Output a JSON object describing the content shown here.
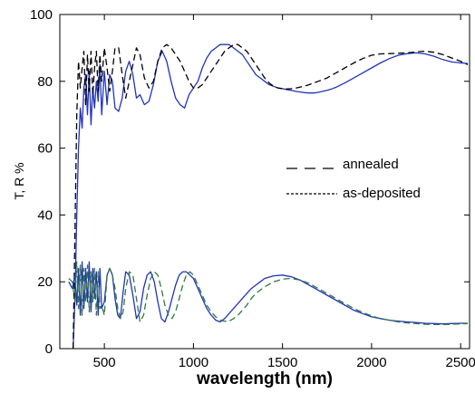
{
  "chart_data": {
    "type": "line",
    "xlabel": "wavelength (nm)",
    "ylabel": "T, R %",
    "xlim": [
      250,
      2550
    ],
    "ylim": [
      0,
      100
    ],
    "xticks": [
      500,
      1000,
      1500,
      2000,
      2500
    ],
    "yticks": [
      0,
      20,
      40,
      60,
      80,
      100
    ],
    "grid": false,
    "legend": {
      "placement": "center-right",
      "entries": [
        {
          "label": "annealed",
          "dash": "long-dash"
        },
        {
          "label": "as-deposited",
          "dash": "short-dash"
        }
      ]
    },
    "series": [
      {
        "role": "transmittance-annealed",
        "color": "#2233bb",
        "style": "solid",
        "x": [
          325,
          335,
          345,
          355,
          365,
          375,
          385,
          395,
          405,
          415,
          425,
          435,
          445,
          455,
          465,
          475,
          485,
          500,
          515,
          530,
          545,
          560,
          580,
          600,
          620,
          640,
          660,
          680,
          700,
          725,
          750,
          775,
          800,
          825,
          850,
          875,
          900,
          925,
          950,
          975,
          1000,
          1025,
          1050,
          1075,
          1100,
          1125,
          1150,
          1175,
          1200,
          1225,
          1250,
          1275,
          1300,
          1325,
          1350,
          1375,
          1400,
          1425,
          1450,
          1475,
          1500,
          1525,
          1550,
          1575,
          1600,
          1625,
          1650,
          1675,
          1700,
          1725,
          1750,
          1775,
          1800,
          1850,
          1900,
          1950,
          2000,
          2050,
          2100,
          2150,
          2200,
          2250,
          2300,
          2350,
          2400,
          2450,
          2500,
          2540
        ],
        "y": [
          0,
          15,
          40,
          60,
          72,
          66,
          78,
          82,
          70,
          83,
          67,
          78,
          72,
          80,
          74,
          85,
          70,
          83,
          73,
          82,
          80,
          72,
          71,
          75,
          83,
          86,
          82,
          75,
          76,
          73,
          74,
          79,
          86,
          89,
          86,
          80,
          75,
          73,
          72,
          76,
          78,
          80,
          84,
          87,
          89,
          90,
          91,
          91,
          91,
          90,
          89,
          88,
          86,
          84,
          82,
          81,
          80,
          79,
          78.5,
          78,
          77.8,
          77.5,
          77.3,
          77,
          76.8,
          76.6,
          76.5,
          76.5,
          76.7,
          77,
          77.3,
          77.7,
          78.2,
          79.5,
          81,
          82.5,
          84,
          85.5,
          86.8,
          87.8,
          88.3,
          88.5,
          88.2,
          87.5,
          86.5,
          85.8,
          85.5,
          85.3
        ]
      },
      {
        "role": "transmittance-as-deposited",
        "color": "#000000",
        "style": "dashed",
        "x": [
          325,
          335,
          345,
          355,
          365,
          375,
          385,
          395,
          405,
          415,
          425,
          435,
          445,
          455,
          465,
          475,
          485,
          500,
          515,
          530,
          545,
          560,
          580,
          600,
          620,
          640,
          660,
          680,
          700,
          725,
          750,
          775,
          800,
          825,
          850,
          875,
          900,
          925,
          950,
          975,
          1000,
          1025,
          1050,
          1075,
          1100,
          1125,
          1150,
          1175,
          1200,
          1225,
          1250,
          1275,
          1300,
          1325,
          1350,
          1375,
          1400,
          1425,
          1450,
          1475,
          1500,
          1525,
          1550,
          1575,
          1600,
          1625,
          1650,
          1675,
          1700,
          1725,
          1750,
          1775,
          1800,
          1850,
          1900,
          1950,
          2000,
          2050,
          2100,
          2150,
          2200,
          2250,
          2300,
          2350,
          2400,
          2450,
          2500,
          2540
        ],
        "y": [
          0,
          35,
          70,
          86,
          78,
          84,
          89,
          73,
          88,
          77,
          89,
          76,
          84,
          89,
          77,
          88,
          80,
          90,
          84,
          77,
          83,
          90,
          90,
          82,
          75,
          80,
          85,
          90,
          88,
          81,
          78,
          80,
          86,
          90,
          91,
          90,
          88,
          86,
          83,
          80,
          78,
          78,
          79,
          81,
          83,
          85,
          87,
          89,
          90,
          91,
          91,
          90,
          89,
          87,
          85,
          83,
          81,
          79.5,
          78.5,
          78,
          77.8,
          77.7,
          77.8,
          78,
          78.3,
          78.6,
          79,
          79.5,
          80,
          80.5,
          81,
          81.8,
          82.5,
          84,
          85.5,
          86.8,
          87.8,
          88.2,
          88.3,
          88.4,
          88.5,
          88.8,
          89,
          88.7,
          88,
          87,
          86,
          85
        ]
      },
      {
        "role": "reflectance-annealed",
        "color": "#2233bb",
        "style": "solid",
        "x": [
          300,
          320,
          335,
          345,
          355,
          365,
          375,
          385,
          395,
          405,
          415,
          425,
          435,
          445,
          455,
          465,
          475,
          485,
          500,
          515,
          530,
          545,
          560,
          575,
          590,
          605,
          620,
          640,
          660,
          680,
          700,
          720,
          740,
          760,
          780,
          800,
          820,
          840,
          860,
          880,
          900,
          920,
          940,
          960,
          980,
          1000,
          1025,
          1050,
          1075,
          1100,
          1125,
          1150,
          1175,
          1200,
          1225,
          1250,
          1275,
          1300,
          1325,
          1350,
          1375,
          1400,
          1450,
          1500,
          1550,
          1600,
          1650,
          1700,
          1750,
          1800,
          1850,
          1900,
          1950,
          2000,
          2050,
          2100,
          2150,
          2200,
          2250,
          2300,
          2350,
          2400,
          2450,
          2500,
          2540
        ],
        "y": [
          20,
          18,
          22,
          13,
          24,
          10,
          26,
          12,
          24,
          14,
          26,
          11,
          24,
          15,
          23,
          10,
          24,
          12,
          14,
          22,
          24,
          22,
          15,
          10,
          9,
          17,
          23,
          22,
          16,
          9,
          11,
          18,
          22,
          23,
          20,
          14,
          9,
          8,
          11,
          15,
          19,
          22,
          23,
          23,
          22,
          21,
          18,
          15,
          12,
          10,
          8.5,
          8,
          9,
          10.5,
          12,
          13.5,
          15,
          16.5,
          18,
          19,
          20,
          21,
          21.8,
          22,
          21.5,
          20.5,
          19,
          17.5,
          16,
          14.5,
          13,
          11.5,
          10.5,
          9.5,
          9,
          8.5,
          8.2,
          8,
          7.8,
          7.6,
          7.5,
          7.4,
          7.5,
          7.6,
          7.6
        ]
      },
      {
        "role": "reflectance-as-deposited",
        "color": "#2f7a3a",
        "style": "dashed",
        "x": [
          300,
          320,
          335,
          345,
          355,
          365,
          375,
          385,
          395,
          405,
          415,
          425,
          435,
          445,
          455,
          465,
          475,
          485,
          500,
          515,
          530,
          545,
          560,
          575,
          590,
          605,
          620,
          640,
          660,
          680,
          700,
          720,
          740,
          760,
          780,
          800,
          820,
          840,
          860,
          880,
          900,
          920,
          940,
          960,
          980,
          1000,
          1025,
          1050,
          1075,
          1100,
          1125,
          1150,
          1175,
          1200,
          1225,
          1250,
          1275,
          1300,
          1325,
          1350,
          1375,
          1400,
          1450,
          1500,
          1550,
          1600,
          1650,
          1700,
          1750,
          1800,
          1850,
          1900,
          1950,
          2000,
          2050,
          2100,
          2150,
          2200,
          2250,
          2300,
          2350,
          2400,
          2450,
          2500,
          2540
        ],
        "y": [
          21,
          20,
          14,
          26,
          12,
          25,
          10,
          24,
          14,
          25,
          11,
          23,
          14,
          24,
          10,
          23,
          12,
          13,
          10,
          22,
          24,
          22,
          18,
          12,
          9,
          11,
          18,
          23,
          22,
          15,
          8,
          10,
          16,
          21,
          23,
          22,
          18,
          13,
          10,
          9,
          11,
          15,
          19,
          22,
          23,
          22,
          19,
          16,
          13,
          11,
          9.5,
          8.5,
          8.2,
          8.2,
          9,
          10,
          11.5,
          13,
          15,
          16.5,
          17.5,
          18.5,
          20,
          20.8,
          21,
          20.5,
          19.5,
          18,
          16.5,
          15,
          13.5,
          12,
          10.8,
          9.8,
          9,
          8.5,
          8,
          7.7,
          7.5,
          7.3,
          7.2,
          7.2,
          7.3,
          7.4,
          7.5
        ]
      }
    ]
  }
}
